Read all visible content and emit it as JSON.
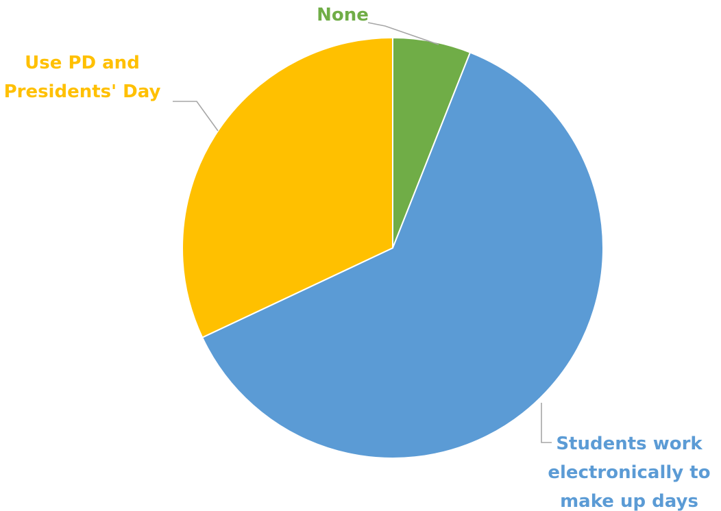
{
  "chart_data": {
    "type": "pie",
    "title": "",
    "start_angle_deg": 0,
    "direction": "clockwise",
    "slices": [
      {
        "label": "None",
        "label_lines": [
          "None"
        ],
        "value": 6,
        "color": "#70ad47"
      },
      {
        "label": "Students work electronically to make up days",
        "label_lines": [
          "Students work",
          "electronically to",
          "make up days"
        ],
        "value": 62,
        "color": "#5b9bd5"
      },
      {
        "label": "Use PD and Presidents' Day",
        "label_lines": [
          "Use PD and",
          "Presidents' Day"
        ],
        "value": 32,
        "color": "#ffc000"
      }
    ],
    "legend": "none",
    "data_labels": "category names with leader lines"
  }
}
